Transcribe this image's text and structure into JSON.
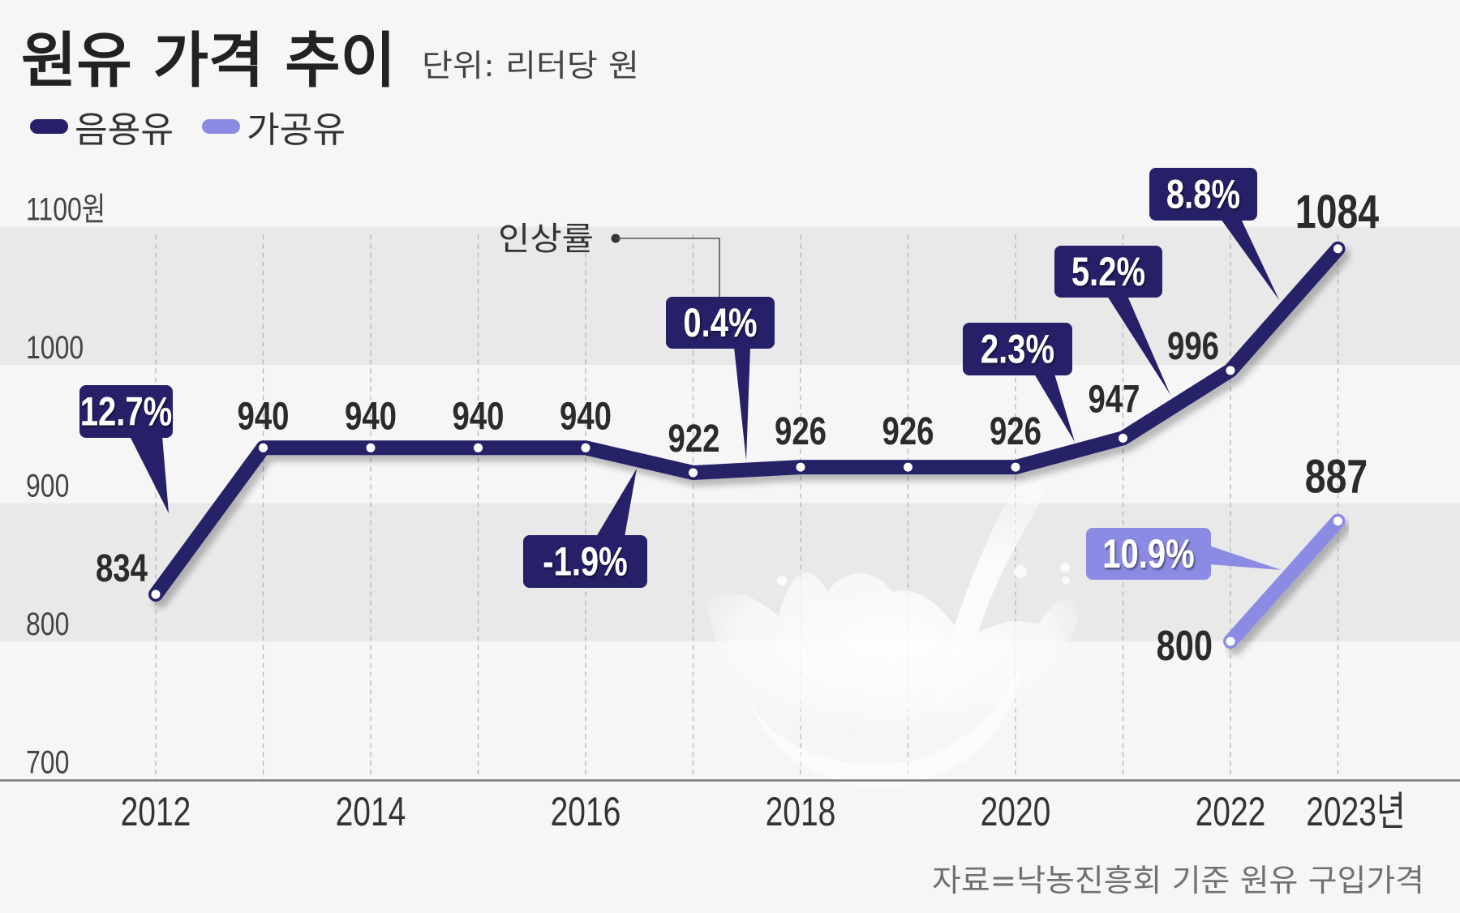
{
  "header": {
    "title": "원유 가격 추이",
    "unit": "단위: 리터당 원"
  },
  "legend": [
    {
      "label": "음용유",
      "color": "#252068"
    },
    {
      "label": "가공유",
      "color": "#8b8be3"
    }
  ],
  "annotation": {
    "label": "인상률"
  },
  "source": "자료=낙농진흥회 기준 원유 구입가격",
  "colors": {
    "background": "#f6f6f6",
    "band": "#e9e9e9",
    "drinking_milk": "#252068",
    "processed_milk": "#8b8be3",
    "value_text": "#2b2b2b"
  },
  "chart_data": {
    "type": "line",
    "title": "원유 가격 추이",
    "subtitle": "단위: 리터당 원",
    "xlabel": "",
    "ylabel": "",
    "x": [
      2012,
      2013,
      2014,
      2015,
      2016,
      2017,
      2018,
      2019,
      2020,
      2021,
      2022,
      2023
    ],
    "x_tick_labels": [
      {
        "year": 2012,
        "label": "2012"
      },
      {
        "year": 2014,
        "label": "2014"
      },
      {
        "year": 2016,
        "label": "2016"
      },
      {
        "year": 2018,
        "label": "2018"
      },
      {
        "year": 2020,
        "label": "2020"
      },
      {
        "year": 2022,
        "label": "2022"
      },
      {
        "year": 2023,
        "label": "2023년"
      }
    ],
    "ylim": [
      700,
      1100
    ],
    "y_ticks": [
      {
        "value": 1100,
        "label": "1100원"
      },
      {
        "value": 1000,
        "label": "1000"
      },
      {
        "value": 900,
        "label": "900"
      },
      {
        "value": 800,
        "label": "800"
      },
      {
        "value": 700,
        "label": "700"
      }
    ],
    "grid": "alternating horizontal bands; dashed vertical lines per year",
    "legend_position": "top-left",
    "series": [
      {
        "name": "음용유",
        "color": "#252068",
        "x": [
          2012,
          2013,
          2014,
          2015,
          2016,
          2017,
          2018,
          2019,
          2020,
          2021,
          2022,
          2023
        ],
        "values": [
          834,
          940,
          940,
          940,
          940,
          922,
          926,
          926,
          926,
          947,
          996,
          1084
        ],
        "labels": [
          "834",
          "940",
          "940",
          "940",
          "940",
          "922",
          "926",
          "926",
          "926",
          "947",
          "996",
          "1084"
        ]
      },
      {
        "name": "가공유",
        "color": "#8b8be3",
        "x": [
          2022,
          2023
        ],
        "values": [
          800,
          887
        ],
        "labels": [
          "800",
          "887"
        ]
      }
    ],
    "annotations": [
      {
        "series": "음용유",
        "from": 2012,
        "to": 2013,
        "text": "12.7%"
      },
      {
        "series": "음용유",
        "from": 2016,
        "to": 2017,
        "text": "-1.9%"
      },
      {
        "series": "음용유",
        "from": 2017,
        "to": 2018,
        "text": "0.4%"
      },
      {
        "series": "음용유",
        "from": 2020,
        "to": 2021,
        "text": "2.3%"
      },
      {
        "series": "음용유",
        "from": 2021,
        "to": 2022,
        "text": "5.2%"
      },
      {
        "series": "음용유",
        "from": 2022,
        "to": 2023,
        "text": "8.8%"
      },
      {
        "series": "가공유",
        "from": 2022,
        "to": 2023,
        "text": "10.9%"
      }
    ]
  }
}
